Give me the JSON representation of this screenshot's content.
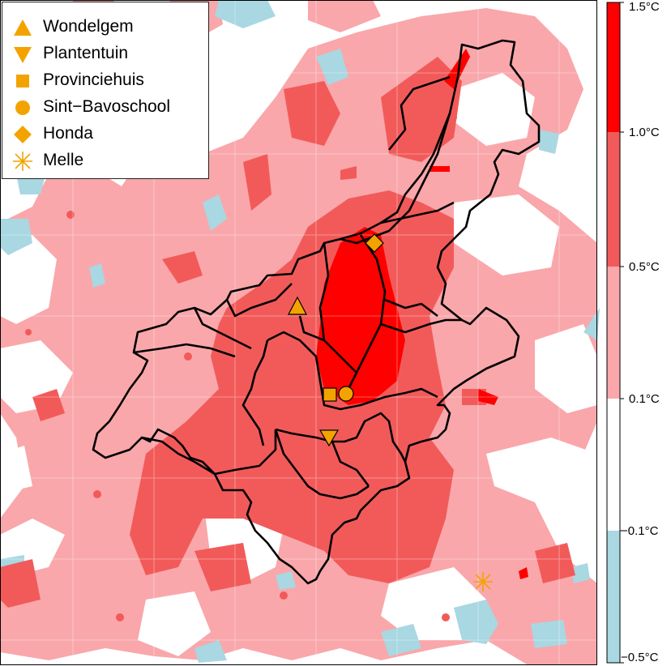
{
  "legend": {
    "items": [
      {
        "label": "Wondelgem",
        "symbol": "triangle-up-icon"
      },
      {
        "label": "Plantentuin",
        "symbol": "triangle-down-icon"
      },
      {
        "label": "Provinciehuis",
        "symbol": "square-icon"
      },
      {
        "label": "Sint−Bavoschool",
        "symbol": "circle-icon"
      },
      {
        "label": "Honda",
        "symbol": "diamond-icon"
      },
      {
        "label": "Melle",
        "symbol": "asterisk-icon"
      }
    ]
  },
  "colorbar": {
    "labels": [
      "1.5°C",
      "1.0°C",
      "0.5°C",
      "0.1°C",
      "−0.1°C",
      "−0.5°C"
    ],
    "bands": [
      {
        "from": 1.0,
        "to": 1.5,
        "color": "#ff0000"
      },
      {
        "from": 0.5,
        "to": 1.0,
        "color": "#f25a5a"
      },
      {
        "from": 0.1,
        "to": 0.5,
        "color": "#f9a7ab"
      },
      {
        "from": -0.1,
        "to": 0.1,
        "color": "#ffffff"
      },
      {
        "from": -0.5,
        "to": -0.1,
        "color": "#a9d7e2"
      }
    ]
  },
  "colors": {
    "marker": "#f3a300",
    "boundary": "#000000",
    "grid": "#ffffff"
  }
}
